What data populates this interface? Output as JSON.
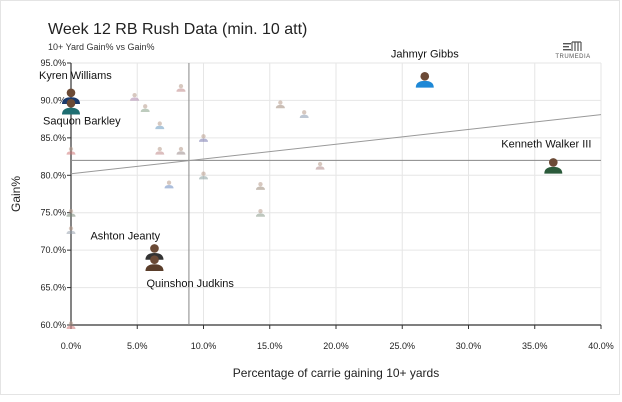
{
  "header": {
    "title": "Week 12 RB Rush Data (min. 10 att)",
    "subtitle": "10+ Yard Gain% vs Gain%",
    "logo_text": "TRUMEDIA"
  },
  "chart_data": {
    "type": "scatter",
    "title": "Week 12 RB Rush Data (min. 10 att)",
    "subtitle": "10+ Yard Gain% vs Gain%",
    "xlabel": "Percentage of carrie gaining 10+ yards",
    "ylabel": "Gain%",
    "xlim": [
      0,
      40
    ],
    "ylim": [
      60,
      95
    ],
    "x_ticks": [
      0,
      5,
      10,
      15,
      20,
      25,
      30,
      35,
      40
    ],
    "x_tick_labels": [
      "0.0%",
      "5.0%",
      "10.0%",
      "15.0%",
      "20.0%",
      "25.0%",
      "30.0%",
      "35.0%",
      "40.0%"
    ],
    "y_ticks": [
      60,
      65,
      70,
      75,
      80,
      85,
      90,
      95
    ],
    "y_tick_labels": [
      "60.0%",
      "65.0%",
      "70.0%",
      "75.0%",
      "80.0%",
      "85.0%",
      "90.0%",
      "95.0%"
    ],
    "grid": true,
    "reference_lines": {
      "x_mean": 8.9,
      "y_mean": 82.0
    },
    "trend_line": {
      "x": [
        0,
        40
      ],
      "y": [
        80.2,
        88.1
      ]
    },
    "highlighted": [
      {
        "name": "Jahmyr Gibbs",
        "x": 26.7,
        "y": 92.8,
        "color": "#1e88d6"
      },
      {
        "name": "Kyren Williams",
        "x": 0.0,
        "y": 90.6,
        "color": "#1b3a6b"
      },
      {
        "name": "Saquon Barkley",
        "x": 0.0,
        "y": 89.2,
        "color": "#1f6e72"
      },
      {
        "name": "Kenneth Walker III",
        "x": 36.4,
        "y": 81.3,
        "color": "#2a5a3a"
      },
      {
        "name": "Ashton Jeanty",
        "x": 6.3,
        "y": 69.8,
        "color": "#333333"
      },
      {
        "name": "Quinshon Judkins",
        "x": 6.3,
        "y": 68.3,
        "color": "#5a3d2a"
      }
    ],
    "others": [
      {
        "x": 0.0,
        "y": 83.3,
        "color": "#d07a7a"
      },
      {
        "x": 0.0,
        "y": 75.0,
        "color": "#7a8a7a"
      },
      {
        "x": 0.0,
        "y": 72.7,
        "color": "#9aa4b0"
      },
      {
        "x": 0.0,
        "y": 60.0,
        "color": "#d07a7a"
      },
      {
        "x": 4.8,
        "y": 90.5,
        "color": "#b08ab0"
      },
      {
        "x": 5.6,
        "y": 89.0,
        "color": "#8aa48a"
      },
      {
        "x": 6.7,
        "y": 86.7,
        "color": "#6a9ac0"
      },
      {
        "x": 6.7,
        "y": 83.3,
        "color": "#c08a8a"
      },
      {
        "x": 7.4,
        "y": 78.8,
        "color": "#6a8ac0"
      },
      {
        "x": 8.3,
        "y": 91.7,
        "color": "#c08a8a"
      },
      {
        "x": 8.3,
        "y": 83.3,
        "color": "#9a8a8a"
      },
      {
        "x": 10.0,
        "y": 85.0,
        "color": "#7a7ab0"
      },
      {
        "x": 10.0,
        "y": 80.0,
        "color": "#8aa0a0"
      },
      {
        "x": 14.3,
        "y": 78.6,
        "color": "#9a8a7a"
      },
      {
        "x": 14.3,
        "y": 75.0,
        "color": "#8a9a8a"
      },
      {
        "x": 15.8,
        "y": 89.5,
        "color": "#a08a7a"
      },
      {
        "x": 17.6,
        "y": 88.2,
        "color": "#8a9ab0"
      },
      {
        "x": 18.8,
        "y": 81.3,
        "color": "#b08a8a"
      }
    ]
  }
}
